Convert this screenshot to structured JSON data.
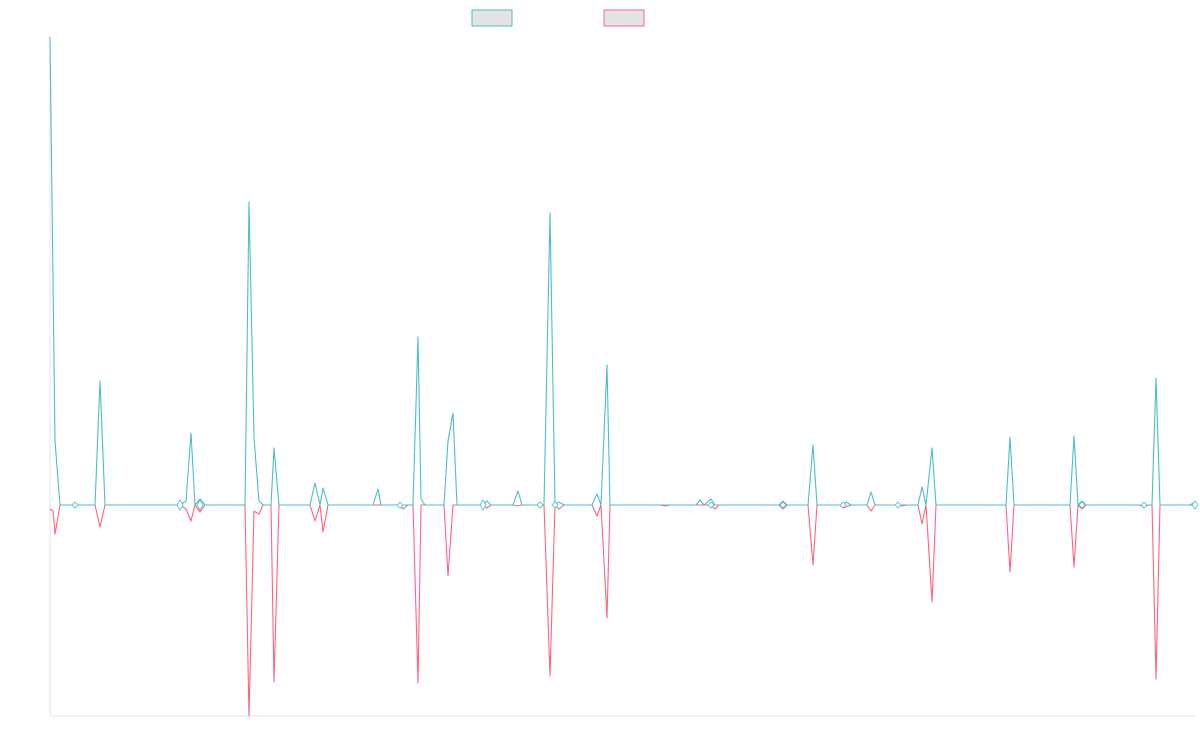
{
  "chart_data": {
    "type": "line",
    "title": "",
    "xlabel": "",
    "ylabel": "",
    "grid": false,
    "legend_position": "top-center",
    "ylim": [
      -211,
      469
    ],
    "colors": {
      "positive": "#4bc0c0",
      "negative": "#ff6384",
      "legend_fill": "#e4e4e4",
      "axis": "#e6e6e6"
    },
    "series": [
      {
        "name": "",
        "color": "#4bc0c0",
        "points": [
          [
            0,
            468
          ],
          [
            5,
            64
          ],
          [
            10,
            0
          ],
          [
            25,
            0
          ],
          [
            45,
            0
          ],
          [
            50,
            124
          ],
          [
            55,
            0
          ],
          [
            130,
            0
          ],
          [
            136,
            4
          ],
          [
            141,
            72
          ],
          [
            145,
            0
          ],
          [
            150,
            6
          ],
          [
            155,
            0
          ],
          [
            195,
            0
          ],
          [
            199,
            303
          ],
          [
            204,
            67
          ],
          [
            209,
            4
          ],
          [
            213,
            0
          ],
          [
            221,
            0
          ],
          [
            224,
            57
          ],
          [
            229,
            0
          ],
          [
            260,
            0
          ],
          [
            265,
            22
          ],
          [
            270,
            0
          ],
          [
            273,
            17
          ],
          [
            278,
            0
          ],
          [
            323,
            0
          ],
          [
            328,
            16
          ],
          [
            331,
            0
          ],
          [
            350,
            0
          ],
          [
            353,
            0
          ],
          [
            358,
            0
          ],
          [
            363,
            0
          ],
          [
            368,
            168
          ],
          [
            371,
            6
          ],
          [
            375,
            0
          ],
          [
            394,
            0
          ],
          [
            398,
            64
          ],
          [
            403,
            92
          ],
          [
            407,
            0
          ],
          [
            433,
            0
          ],
          [
            437,
            4
          ],
          [
            441,
            0
          ],
          [
            463,
            0
          ],
          [
            468,
            14
          ],
          [
            472,
            0
          ],
          [
            487,
            0
          ],
          [
            490,
            0
          ],
          [
            494,
            0
          ],
          [
            494,
            0
          ],
          [
            500,
            292
          ],
          [
            505,
            0
          ],
          [
            504,
            0
          ],
          [
            509,
            3
          ],
          [
            514,
            0
          ],
          [
            542,
            0
          ],
          [
            547,
            11
          ],
          [
            551,
            0
          ],
          [
            557,
            140
          ],
          [
            560,
            0
          ],
          [
            610,
            0
          ],
          [
            615,
            0
          ],
          [
            620,
            0
          ],
          [
            646,
            0
          ],
          [
            650,
            5
          ],
          [
            654,
            0
          ],
          [
            661,
            6
          ],
          [
            665,
            0
          ],
          [
            721,
            0
          ],
          [
            724,
            0
          ],
          [
            729,
            0
          ],
          [
            733,
            4
          ],
          [
            737,
            0
          ],
          [
            758,
            0
          ],
          [
            763,
            60
          ],
          [
            767,
            0
          ],
          [
            790,
            0
          ],
          [
            793,
            0
          ],
          [
            796,
            3
          ],
          [
            801,
            0
          ],
          [
            817,
            0
          ],
          [
            821,
            13
          ],
          [
            825,
            0
          ],
          [
            848,
            0
          ],
          [
            852,
            0
          ],
          [
            857,
            0
          ],
          [
            868,
            0
          ],
          [
            872,
            18
          ],
          [
            876,
            0
          ],
          [
            882,
            57
          ],
          [
            886,
            0
          ],
          [
            956,
            0
          ],
          [
            960,
            68
          ],
          [
            964,
            0
          ],
          [
            1020,
            0
          ],
          [
            1024,
            69
          ],
          [
            1028,
            0
          ],
          [
            1032,
            4
          ],
          [
            1036,
            0
          ],
          [
            1040,
            0
          ],
          [
            1090,
            0
          ],
          [
            1094,
            0
          ],
          [
            1098,
            0
          ],
          [
            1102,
            0
          ],
          [
            1106,
            127
          ],
          [
            1110,
            0
          ],
          [
            1140,
            0
          ],
          [
            1145,
            3
          ]
        ]
      },
      {
        "name": "",
        "color": "#ff6384",
        "points": [
          [
            0,
            -4
          ],
          [
            3,
            -6
          ],
          [
            5,
            -29
          ],
          [
            10,
            0
          ],
          [
            45,
            0
          ],
          [
            50,
            -22
          ],
          [
            55,
            0
          ],
          [
            130,
            0
          ],
          [
            136,
            -4
          ],
          [
            141,
            -16
          ],
          [
            145,
            0
          ],
          [
            150,
            -7
          ],
          [
            155,
            0
          ],
          [
            195,
            0
          ],
          [
            199,
            -211
          ],
          [
            204,
            -6
          ],
          [
            209,
            -9
          ],
          [
            213,
            0
          ],
          [
            221,
            0
          ],
          [
            224,
            -177
          ],
          [
            229,
            0
          ],
          [
            260,
            0
          ],
          [
            265,
            -16
          ],
          [
            270,
            0
          ],
          [
            273,
            -27
          ],
          [
            278,
            0
          ],
          [
            350,
            0
          ],
          [
            353,
            -4
          ],
          [
            358,
            0
          ],
          [
            363,
            0
          ],
          [
            368,
            -178
          ],
          [
            371,
            0
          ],
          [
            394,
            0
          ],
          [
            398,
            -71
          ],
          [
            403,
            0
          ],
          [
            433,
            0
          ],
          [
            437,
            -3
          ],
          [
            441,
            0
          ],
          [
            463,
            0
          ],
          [
            468,
            -1
          ],
          [
            472,
            0
          ],
          [
            487,
            0
          ],
          [
            490,
            -1
          ],
          [
            494,
            0
          ],
          [
            494,
            0
          ],
          [
            500,
            -171
          ],
          [
            505,
            0
          ],
          [
            504,
            0
          ],
          [
            509,
            -4
          ],
          [
            514,
            0
          ],
          [
            542,
            0
          ],
          [
            547,
            -11
          ],
          [
            551,
            0
          ],
          [
            557,
            -113
          ],
          [
            560,
            0
          ],
          [
            610,
            0
          ],
          [
            615,
            -1
          ],
          [
            620,
            0
          ],
          [
            661,
            0
          ],
          [
            665,
            -4
          ],
          [
            669,
            0
          ],
          [
            729,
            0
          ],
          [
            733,
            -4
          ],
          [
            737,
            0
          ],
          [
            758,
            0
          ],
          [
            763,
            -60
          ],
          [
            767,
            0
          ],
          [
            790,
            0
          ],
          [
            793,
            -3
          ],
          [
            796,
            -2
          ],
          [
            801,
            0
          ],
          [
            817,
            0
          ],
          [
            821,
            -6
          ],
          [
            825,
            0
          ],
          [
            848,
            0
          ],
          [
            852,
            -1
          ],
          [
            857,
            0
          ],
          [
            868,
            0
          ],
          [
            872,
            -19
          ],
          [
            876,
            0
          ],
          [
            882,
            -97
          ],
          [
            886,
            0
          ],
          [
            956,
            0
          ],
          [
            960,
            -67
          ],
          [
            964,
            0
          ],
          [
            1020,
            0
          ],
          [
            1024,
            -62
          ],
          [
            1028,
            0
          ],
          [
            1032,
            -4
          ],
          [
            1036,
            0
          ],
          [
            1040,
            0
          ],
          [
            1090,
            0
          ],
          [
            1094,
            -2
          ],
          [
            1098,
            0
          ],
          [
            1102,
            0
          ],
          [
            1106,
            -174
          ],
          [
            1110,
            0
          ],
          [
            1140,
            0
          ],
          [
            1145,
            0
          ]
        ]
      }
    ],
    "markers": [
      [
        25,
        0
      ],
      [
        130,
        2
      ],
      [
        150,
        2
      ],
      [
        350,
        0
      ],
      [
        433,
        2
      ],
      [
        490,
        0
      ],
      [
        505,
        0
      ],
      [
        661,
        0
      ],
      [
        733,
        0
      ],
      [
        793,
        0
      ],
      [
        848,
        0
      ],
      [
        1032,
        0
      ],
      [
        1094,
        0
      ],
      [
        1145,
        1
      ]
    ]
  }
}
